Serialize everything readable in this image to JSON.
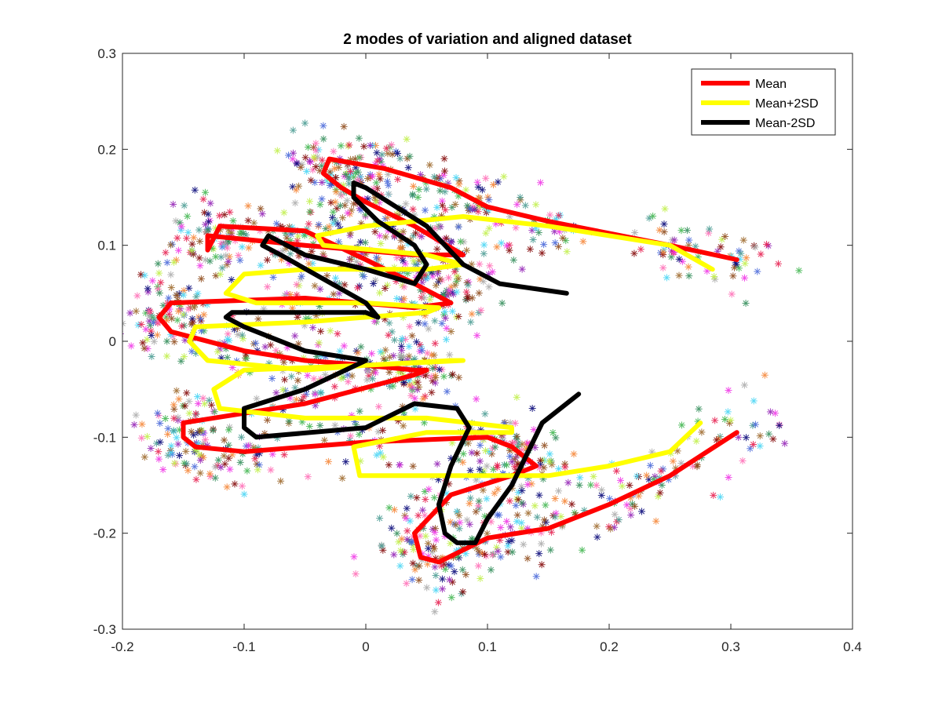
{
  "chart_data": {
    "type": "line",
    "title": "2 modes of variation and aligned dataset",
    "xlabel": "",
    "ylabel": "",
    "xlim": [
      -0.2,
      0.4
    ],
    "ylim": [
      -0.3,
      0.3
    ],
    "x_ticks": [
      "-0.2",
      "-0.1",
      "0",
      "0.1",
      "0.2",
      "0.3",
      "0.4"
    ],
    "y_ticks": [
      "0.3",
      "0.2",
      "0.1",
      "0",
      "-0.1",
      "-0.2",
      "-0.3"
    ],
    "grid": false,
    "legend_position": "top-right",
    "scatter_colors": [
      "#e6194b",
      "#3cb44b",
      "#4363d8",
      "#f58231",
      "#911eb4",
      "#42d4f4",
      "#f032e6",
      "#bfef45",
      "#469990",
      "#9a6324",
      "#800000",
      "#000075",
      "#a9a9a9",
      "#ff69b4",
      "#2e8b57",
      "#8b4513"
    ],
    "series": [
      {
        "name": "Mean",
        "color": "#ff0000",
        "x": [
          0.305,
          0.25,
          0.15,
          0.1,
          0.07,
          0.015,
          -0.03,
          -0.035,
          -0.02,
          0.0,
          0.04,
          0.08,
          0.04,
          -0.05,
          -0.13,
          -0.13,
          -0.12,
          -0.05,
          0.0,
          0.04,
          0.07,
          0.04,
          -0.05,
          -0.16,
          -0.17,
          -0.16,
          -0.1,
          -0.05,
          0.0,
          0.04,
          0.05,
          0.04,
          -0.05,
          -0.15,
          -0.15,
          -0.14,
          -0.1,
          0.0,
          0.1,
          0.12,
          0.14,
          0.12,
          0.07,
          0.04,
          0.045,
          0.06,
          0.1,
          0.15,
          0.2,
          0.25,
          0.305
        ],
        "y": [
          0.085,
          0.1,
          0.125,
          0.14,
          0.16,
          0.18,
          0.19,
          0.175,
          0.16,
          0.145,
          0.12,
          0.09,
          0.09,
          0.1,
          0.11,
          0.095,
          0.12,
          0.115,
          0.085,
          0.06,
          0.04,
          0.035,
          0.045,
          0.04,
          0.025,
          0.01,
          -0.01,
          -0.02,
          -0.025,
          -0.03,
          -0.03,
          -0.035,
          -0.065,
          -0.085,
          -0.1,
          -0.11,
          -0.115,
          -0.105,
          -0.1,
          -0.11,
          -0.13,
          -0.14,
          -0.16,
          -0.2,
          -0.225,
          -0.23,
          -0.205,
          -0.195,
          -0.17,
          -0.14,
          -0.095
        ]
      },
      {
        "name": "Mean+2SD",
        "color": "#ffff00",
        "x": [
          0.285,
          0.25,
          0.15,
          0.08,
          0.0,
          -0.04,
          -0.035,
          0.05,
          0.08,
          0.05,
          -0.05,
          -0.1,
          -0.115,
          -0.09,
          0.0,
          0.06,
          0.05,
          -0.05,
          -0.14,
          -0.145,
          -0.13,
          -0.05,
          0.0,
          0.07,
          0.08,
          0.0,
          -0.1,
          -0.125,
          -0.12,
          -0.05,
          0.05,
          0.12,
          0.12,
          0.05,
          -0.01,
          -0.005,
          0.05,
          0.1,
          0.15,
          0.2,
          0.25,
          0.275
        ],
        "y": [
          0.075,
          0.1,
          0.12,
          0.13,
          0.12,
          0.11,
          0.1,
          0.09,
          0.08,
          0.075,
          0.075,
          0.07,
          0.05,
          0.04,
          0.04,
          0.035,
          0.03,
          0.02,
          0.015,
          0.0,
          -0.02,
          -0.03,
          -0.025,
          -0.02,
          -0.02,
          -0.025,
          -0.03,
          -0.05,
          -0.07,
          -0.08,
          -0.08,
          -0.09,
          -0.095,
          -0.095,
          -0.11,
          -0.14,
          -0.14,
          -0.14,
          -0.14,
          -0.13,
          -0.115,
          -0.085
        ]
      },
      {
        "name": "Mean-2SD",
        "color": "#000000",
        "x": [
          0.165,
          0.11,
          0.08,
          0.05,
          0.0,
          -0.01,
          -0.01,
          0.01,
          0.04,
          0.05,
          0.04,
          0.0,
          -0.05,
          -0.08,
          -0.085,
          -0.07,
          0.0,
          0.01,
          0.0,
          -0.05,
          -0.11,
          -0.115,
          -0.1,
          -0.05,
          0.0,
          0.0,
          -0.05,
          -0.1,
          -0.1,
          -0.09,
          0.0,
          0.04,
          0.075,
          0.085,
          0.07,
          0.06,
          0.065,
          0.075,
          0.09,
          0.1,
          0.12,
          0.145,
          0.175
        ],
        "y": [
          0.05,
          0.06,
          0.08,
          0.12,
          0.16,
          0.165,
          0.15,
          0.125,
          0.1,
          0.08,
          0.06,
          0.075,
          0.09,
          0.11,
          0.1,
          0.09,
          0.04,
          0.025,
          0.03,
          0.03,
          0.03,
          0.025,
          0.015,
          -0.01,
          -0.02,
          -0.02,
          -0.05,
          -0.07,
          -0.09,
          -0.1,
          -0.09,
          -0.065,
          -0.07,
          -0.09,
          -0.13,
          -0.17,
          -0.2,
          -0.21,
          -0.21,
          -0.185,
          -0.15,
          -0.085,
          -0.055
        ]
      }
    ]
  }
}
